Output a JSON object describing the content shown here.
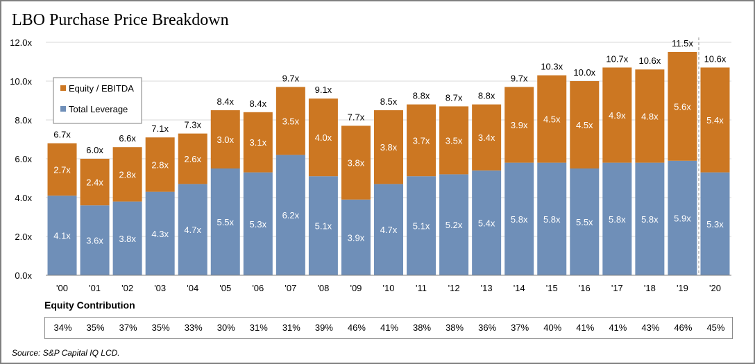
{
  "title": "LBO Purchase Price Breakdown",
  "source": "Source: S&P Capital IQ LCD.",
  "colors": {
    "equity": "#cc7722",
    "leverage": "#6f8fb8",
    "grid": "#d9d9d9"
  },
  "chart_data": {
    "type": "bar",
    "stacked": true,
    "title": "LBO Purchase Price Breakdown",
    "categories": [
      "'00",
      "'01",
      "'02",
      "'03",
      "'04",
      "'05",
      "'06",
      "'07",
      "'08",
      "'09",
      "'10",
      "'11",
      "'12",
      "'13",
      "'14",
      "'15",
      "'16",
      "'17",
      "'18",
      "'19",
      "'20"
    ],
    "series": [
      {
        "name": "Total Leverage",
        "values": [
          4.1,
          3.6,
          3.8,
          4.3,
          4.7,
          5.5,
          5.3,
          6.2,
          5.1,
          3.9,
          4.7,
          5.1,
          5.2,
          5.4,
          5.8,
          5.8,
          5.5,
          5.8,
          5.8,
          5.9,
          5.3
        ],
        "labels": [
          "4.1x",
          "3.6x",
          "3.8x",
          "4.3x",
          "4.7x",
          "5.5x",
          "5.3x",
          "6.2x",
          "5.1x",
          "3.9x",
          "4.7x",
          "5.1x",
          "5.2x",
          "5.4x",
          "5.8x",
          "5.8x",
          "5.5x",
          "5.8x",
          "5.8x",
          "5.9x",
          "5.3x"
        ]
      },
      {
        "name": "Equity / EBITDA",
        "values": [
          2.7,
          2.4,
          2.8,
          2.8,
          2.6,
          3.0,
          3.1,
          3.5,
          4.0,
          3.8,
          3.8,
          3.7,
          3.5,
          3.4,
          3.9,
          4.5,
          4.5,
          4.9,
          4.8,
          5.6,
          5.4
        ],
        "labels": [
          "2.7x",
          "2.4x",
          "2.8x",
          "2.8x",
          "2.6x",
          "3.0x",
          "3.1x",
          "3.5x",
          "4.0x",
          "3.8x",
          "3.8x",
          "3.7x",
          "3.5x",
          "3.4x",
          "3.9x",
          "4.5x",
          "4.5x",
          "4.9x",
          "4.8x",
          "5.6x",
          "5.4x"
        ]
      }
    ],
    "totals": [
      6.7,
      6.0,
      6.6,
      7.1,
      7.3,
      8.4,
      8.4,
      9.7,
      9.1,
      7.7,
      8.5,
      8.8,
      8.7,
      8.8,
      9.7,
      10.3,
      10.0,
      10.7,
      10.6,
      11.5,
      10.6
    ],
    "total_labels": [
      "6.7x",
      "6.0x",
      "6.6x",
      "7.1x",
      "7.3x",
      "8.4x",
      "8.4x",
      "9.7x",
      "9.1x",
      "7.7x",
      "8.5x",
      "8.8x",
      "8.7x",
      "8.8x",
      "9.7x",
      "10.3x",
      "10.0x",
      "10.7x",
      "10.6x",
      "11.5x",
      "10.6x"
    ],
    "ylim": [
      0,
      12
    ],
    "yticks": [
      "0.0x",
      "2.0x",
      "4.0x",
      "6.0x",
      "8.0x",
      "10.0x",
      "12.0x"
    ],
    "grid": true,
    "legend_position": "top-left",
    "legend": [
      "Equity / EBITDA",
      "Total Leverage"
    ],
    "divider_before": "'20"
  },
  "equity_contribution": {
    "heading": "Equity Contribution",
    "values": [
      "34%",
      "35%",
      "37%",
      "35%",
      "33%",
      "30%",
      "31%",
      "31%",
      "39%",
      "46%",
      "41%",
      "38%",
      "38%",
      "36%",
      "37%",
      "40%",
      "41%",
      "41%",
      "43%",
      "46%",
      "45%"
    ]
  }
}
